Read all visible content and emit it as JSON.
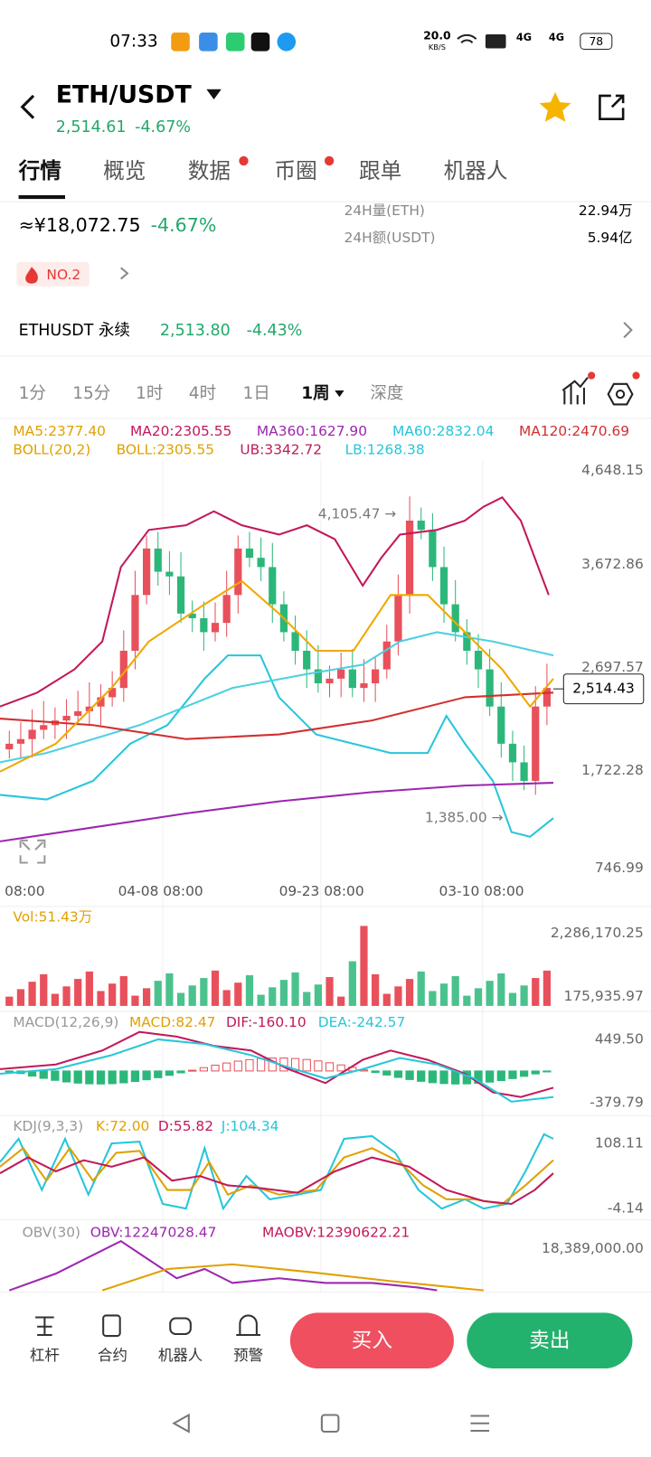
{
  "status_bar": {
    "time": "07:33",
    "speed": "20.0",
    "speed_unit": "KB/S",
    "network": "4G",
    "battery": "78"
  },
  "header": {
    "pair": "ETH/USDT",
    "price": "2,514.61",
    "change": "-4.67%"
  },
  "tabs": [
    "行情",
    "概览",
    "数据",
    "币圈",
    "跟单",
    "机器人"
  ],
  "summary": {
    "cny_price": "≈¥18,072.75",
    "change": "-4.67%",
    "volume_label": "24H量(ETH)",
    "volume": "22.94万",
    "amount_label": "24H额(USDT)",
    "amount": "5.94亿",
    "rank": "NO.2"
  },
  "perpetual": {
    "name": "ETHUSDT 永续",
    "price": "2,513.80",
    "change": "-4.43%"
  },
  "intervals": [
    "1分",
    "15分",
    "1时",
    "4时",
    "1日",
    "1周",
    "深度"
  ],
  "indicators": {
    "row1": [
      "MA5:2377.40",
      "MA20:2305.55",
      "MA360:1627.90",
      "MA60:2832.04",
      "MA120:2470.69"
    ],
    "row2": [
      "BOLL(20,2)",
      "BOLL:2305.55",
      "UB:3342.72",
      "LB:1268.38"
    ]
  },
  "price_axis": [
    "4,648.15",
    "3,672.86",
    "2,697.57",
    "1,722.28",
    "746.99"
  ],
  "annotations": {
    "high": "4,105.47 →",
    "low": "1,385.00 →",
    "current": "2,514.43"
  },
  "time_axis": [
    "08:00",
    "04-08 08:00",
    "09-23 08:00",
    "03-10 08:00"
  ],
  "volume": {
    "label": "Vol:51.43万",
    "axis": [
      "2,286,170.25",
      "175,935.97"
    ]
  },
  "macd": {
    "labels": [
      "MACD(12,26,9)",
      "MACD:82.47",
      "DIF:-160.10",
      "DEA:-242.57"
    ],
    "axis": [
      "449.50",
      "-379.79"
    ]
  },
  "kdj": {
    "labels": [
      "KDJ(9,3,3)",
      "K:72.00",
      "D:55.82",
      "J:104.34"
    ],
    "axis": [
      "108.11",
      "-4.14"
    ]
  },
  "obv": {
    "labels": [
      "OBV(30)",
      "OBV:12247028.47",
      "MAOBV:12390622.21"
    ],
    "axis": [
      "18,389,000.00"
    ]
  },
  "bottom_bar": {
    "tools": [
      "杠杆",
      "合约",
      "机器人",
      "预警"
    ],
    "buy": "买入",
    "sell": "卖出"
  }
}
